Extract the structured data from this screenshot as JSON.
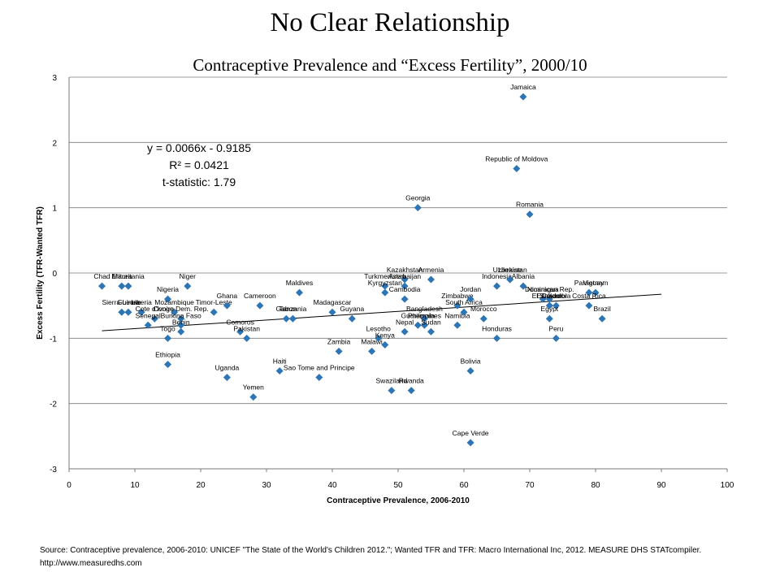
{
  "header": {
    "title": "No Clear Relationship",
    "subtitle": "Contraceptive Prevalence and “Excess Fertility”, 2000/10"
  },
  "regression": {
    "equation": "y = 0.0066x - 0.9185",
    "r_squared": "R² = 0.0421",
    "t_statistic": "t-statistic: 1.79"
  },
  "source": "Source: Contraceptive prevalence, 2006-2010: UNICEF \"The State of the World's Children 2012.\"; Wanted TFR  and TFR: Macro International Inc, 2012. MEASURE DHS STATcompiler. http://www.measuredhs.com",
  "colors": {
    "marker": "#2e75b6",
    "trendline": "#000000",
    "gridline": "#7a7a7a"
  },
  "chart_data": {
    "type": "scatter",
    "xlabel": "Contraceptive Prevalence, 2006-2010",
    "ylabel": "Excess Fertility (TFR-Wanted TFR)",
    "xlim": [
      0,
      100
    ],
    "ylim": [
      -3,
      3
    ],
    "x_ticks": [
      0,
      10,
      20,
      30,
      40,
      50,
      60,
      70,
      80,
      90,
      100
    ],
    "y_ticks": [
      -3,
      -2,
      -1,
      0,
      1,
      2,
      3
    ],
    "grid": "horizontal",
    "trendline": {
      "slope": 0.0066,
      "intercept": -0.9185,
      "x_range": [
        5,
        90
      ]
    },
    "points": [
      {
        "label": "Jamaica",
        "x": 69,
        "y": 2.7
      },
      {
        "label": "Republic of Moldova",
        "x": 68,
        "y": 1.6
      },
      {
        "label": "Romania",
        "x": 70,
        "y": 0.9
      },
      {
        "label": "Georgia",
        "x": 53,
        "y": 1.0
      },
      {
        "label": "Chad",
        "x": 5,
        "y": -0.2
      },
      {
        "label": "Eritrea",
        "x": 8,
        "y": -0.2
      },
      {
        "label": "Mauritania",
        "x": 9,
        "y": -0.2
      },
      {
        "label": "Niger",
        "x": 18,
        "y": -0.2
      },
      {
        "label": "Nigeria",
        "x": 15,
        "y": -0.4
      },
      {
        "label": "Sierra Leone",
        "x": 8,
        "y": -0.6
      },
      {
        "label": "Guinea",
        "x": 9,
        "y": -0.6
      },
      {
        "label": "Liberia",
        "x": 11,
        "y": -0.6
      },
      {
        "label": "Mozambique",
        "x": 16,
        "y": -0.6
      },
      {
        "label": "Cote d'Ivoire",
        "x": 13,
        "y": -0.7
      },
      {
        "label": "Congo Dem. Rep.",
        "x": 17,
        "y": -0.7
      },
      {
        "label": "Senegal",
        "x": 12,
        "y": -0.8
      },
      {
        "label": "Burkina Faso",
        "x": 17,
        "y": -0.8
      },
      {
        "label": "Benin",
        "x": 17,
        "y": -0.9
      },
      {
        "label": "Togo",
        "x": 15,
        "y": -1.0
      },
      {
        "label": "Timor-Leste",
        "x": 22,
        "y": -0.6
      },
      {
        "label": "Ethiopia",
        "x": 15,
        "y": -1.4
      },
      {
        "label": "Ghana",
        "x": 24,
        "y": -0.5
      },
      {
        "label": "Cameroon",
        "x": 29,
        "y": -0.5
      },
      {
        "label": "Comoros",
        "x": 26,
        "y": -0.9
      },
      {
        "label": "Pakistan",
        "x": 27,
        "y": -1.0
      },
      {
        "label": "Uganda",
        "x": 24,
        "y": -1.6
      },
      {
        "label": "Yemen",
        "x": 28,
        "y": -1.9
      },
      {
        "label": "Maldives",
        "x": 35,
        "y": -0.3
      },
      {
        "label": "Gabon",
        "x": 33,
        "y": -0.7
      },
      {
        "label": "Tanzania",
        "x": 34,
        "y": -0.7
      },
      {
        "label": "Haiti",
        "x": 32,
        "y": -1.5
      },
      {
        "label": "Madagascar",
        "x": 40,
        "y": -0.6
      },
      {
        "label": "Guyana",
        "x": 43,
        "y": -0.7
      },
      {
        "label": "Sao Tome and Principe",
        "x": 38,
        "y": -1.6
      },
      {
        "label": "Zambia",
        "x": 41,
        "y": -1.2
      },
      {
        "label": "Malawi",
        "x": 46,
        "y": -1.2
      },
      {
        "label": "Lesotho",
        "x": 47,
        "y": -1.0
      },
      {
        "label": "Kenya",
        "x": 48,
        "y": -1.1
      },
      {
        "label": "Nepal",
        "x": 51,
        "y": -0.9
      },
      {
        "label": "Kazakhstan",
        "x": 51,
        "y": -0.1
      },
      {
        "label": "Armenia",
        "x": 55,
        "y": -0.1
      },
      {
        "label": "Turkmenistan",
        "x": 48,
        "y": -0.2
      },
      {
        "label": "Azerbaijan",
        "x": 51,
        "y": -0.2
      },
      {
        "label": "Kyrgyzstan",
        "x": 48,
        "y": -0.3
      },
      {
        "label": "Cambodia",
        "x": 51,
        "y": -0.4
      },
      {
        "label": "Guatemala",
        "x": 53,
        "y": -0.8
      },
      {
        "label": "Bangladesh",
        "x": 54,
        "y": -0.7
      },
      {
        "label": "Philippines",
        "x": 54,
        "y": -0.8
      },
      {
        "label": "Sudan",
        "x": 55,
        "y": -0.9
      },
      {
        "label": "Namibia",
        "x": 59,
        "y": -0.8
      },
      {
        "label": "Zimbabwe",
        "x": 59,
        "y": -0.5
      },
      {
        "label": "South Africa",
        "x": 60,
        "y": -0.6
      },
      {
        "label": "Jordan",
        "x": 61,
        "y": -0.4
      },
      {
        "label": "Morocco",
        "x": 63,
        "y": -0.7
      },
      {
        "label": "Indonesia",
        "x": 65,
        "y": -0.2
      },
      {
        "label": "Uzbekistan",
        "x": 67,
        "y": -0.1
      },
      {
        "label": "Ukraine",
        "x": 67,
        "y": -0.1
      },
      {
        "label": "Albania",
        "x": 69,
        "y": -0.2
      },
      {
        "label": "Honduras",
        "x": 65,
        "y": -1.0
      },
      {
        "label": "Bolivia",
        "x": 61,
        "y": -1.5
      },
      {
        "label": "Swaziland",
        "x": 49,
        "y": -1.8
      },
      {
        "label": "Rwanda",
        "x": 52,
        "y": -1.8
      },
      {
        "label": "Cape Verde",
        "x": 61,
        "y": -2.6
      },
      {
        "label": "Nicaragua",
        "x": 72,
        "y": -0.4
      },
      {
        "label": "Dominican Rep.",
        "x": 73,
        "y": -0.4
      },
      {
        "label": "El Salvador",
        "x": 73,
        "y": -0.5
      },
      {
        "label": "Colombia",
        "x": 74,
        "y": -0.5
      },
      {
        "label": "Egypt",
        "x": 73,
        "y": -0.7
      },
      {
        "label": "Ecuador",
        "x": 73,
        "y": -0.5
      },
      {
        "label": "Peru",
        "x": 74,
        "y": -1.0
      },
      {
        "label": "Paraguay",
        "x": 79,
        "y": -0.3
      },
      {
        "label": "Vietnam",
        "x": 80,
        "y": -0.3
      },
      {
        "label": "Brazil",
        "x": 81,
        "y": -0.7
      },
      {
        "label": "Costa Rica",
        "x": 79,
        "y": -0.5
      }
    ]
  }
}
